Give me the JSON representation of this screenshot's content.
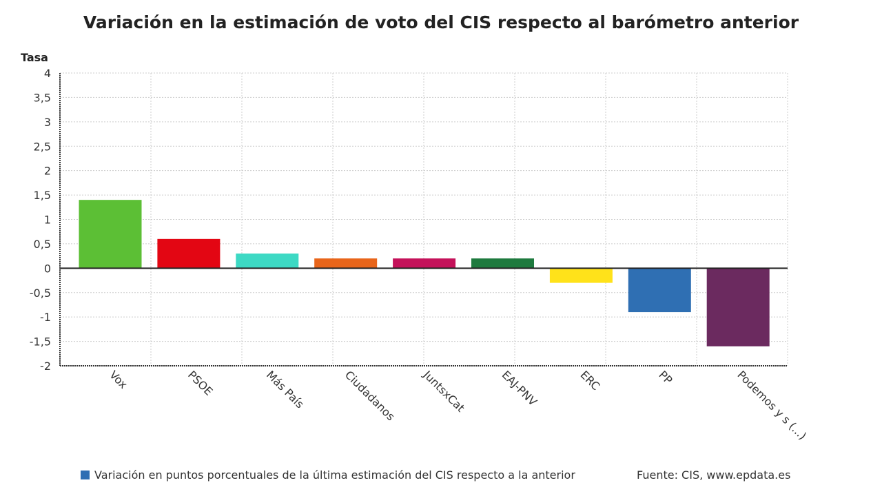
{
  "chart_data": {
    "type": "bar",
    "title": "Variación en la estimación de voto del CIS respecto al barómetro anterior",
    "ylabel": "Tasa",
    "xlabel": "",
    "categories": [
      "Vox",
      "PSOE",
      "Más País",
      "Ciudadanos",
      "JuntsxCat",
      "EAJ-PNV",
      "ERC",
      "PP",
      "Podemos y s (...)"
    ],
    "values": [
      1.4,
      0.6,
      0.3,
      0.2,
      0.2,
      0.2,
      -0.3,
      -0.9,
      -1.6
    ],
    "colors": [
      "#5cbf35",
      "#e30613",
      "#3dd9c4",
      "#e8651a",
      "#c4125a",
      "#1e7a3e",
      "#ffe21a",
      "#2f6fb3",
      "#6b2a5f"
    ],
    "ylim": [
      -2,
      4
    ],
    "yticks": [
      "4",
      "3,5",
      "3",
      "2,5",
      "2",
      "1,5",
      "1",
      "0,5",
      "0",
      "-0,5",
      "-1",
      "-1,5",
      "-2"
    ],
    "ytick_values": [
      4,
      3.5,
      3,
      2.5,
      2,
      1.5,
      1,
      0.5,
      0,
      -0.5,
      -1,
      -1.5,
      -2
    ],
    "grid": true,
    "legend": {
      "position": "bottom-left",
      "label": "Variación en puntos porcentuales de la última estimación del CIS respecto a la anterior",
      "color": "#2f6fb3"
    },
    "source": "Fuente: CIS, www.epdata.es"
  }
}
